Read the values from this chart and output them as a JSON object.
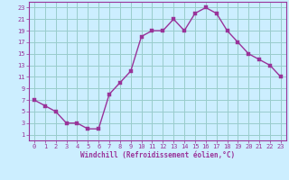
{
  "x": [
    0,
    1,
    2,
    3,
    4,
    5,
    6,
    7,
    8,
    9,
    10,
    11,
    12,
    13,
    14,
    15,
    16,
    17,
    18,
    19,
    20,
    21,
    22,
    23
  ],
  "y": [
    7,
    6,
    5,
    3,
    3,
    2,
    2,
    8,
    10,
    12,
    18,
    19,
    19,
    21,
    19,
    22,
    23,
    22,
    19,
    17,
    15,
    14,
    13,
    11
  ],
  "line_color": "#993399",
  "marker_color": "#993399",
  "bg_color": "#cceeff",
  "grid_color": "#99cccc",
  "xlabel": "Windchill (Refroidissement éolien,°C)",
  "xlabel_color": "#993399",
  "tick_color": "#993399",
  "ylim": [
    0,
    24
  ],
  "ytick_vals": [
    1,
    3,
    5,
    7,
    9,
    11,
    13,
    15,
    17,
    19,
    21,
    23
  ],
  "xtick_vals": [
    0,
    1,
    2,
    3,
    4,
    5,
    6,
    7,
    8,
    9,
    10,
    11,
    12,
    13,
    14,
    15,
    16,
    17,
    18,
    19,
    20,
    21,
    22,
    23
  ],
  "xlim": [
    -0.5,
    23.5
  ]
}
